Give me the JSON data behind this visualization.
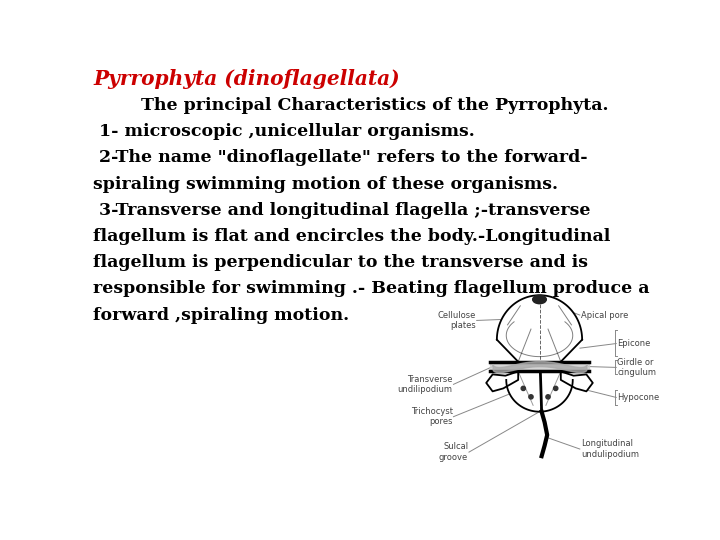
{
  "title": "Pyrrophyta (dinoflagellata)",
  "title_color": "#cc0000",
  "title_fontsize": 14.5,
  "background_color": "#ffffff",
  "text_color": "#000000",
  "body_lines": [
    {
      "text": "        The principal Characteristics of the Pyrrophyta.",
      "bold": true,
      "fontsize": 12.5
    },
    {
      "text": " 1- microscopic ,unicellular organisms.",
      "bold": true,
      "fontsize": 12.5
    },
    {
      "text": " 2-The name \"dinoflagellate\" refers to the forward-",
      "bold": true,
      "fontsize": 12.5
    },
    {
      "text": "spiraling swimming motion of these organisms.",
      "bold": true,
      "fontsize": 12.5
    },
    {
      "text": " 3-Transverse and longitudinal flagella ;-transverse",
      "bold": true,
      "fontsize": 12.5
    },
    {
      "text": "flagellum is flat and encircles the body.-Longitudinal",
      "bold": true,
      "fontsize": 12.5
    },
    {
      "text": "flagellum is perpendicular to the transverse and is",
      "bold": true,
      "fontsize": 12.5
    },
    {
      "text": "responsible for swimming .- Beating flagellum produce a",
      "bold": true,
      "fontsize": 12.5
    },
    {
      "text": "forward ,spiraling motion.",
      "bold": true,
      "fontsize": 12.5
    }
  ],
  "label_fontsize": 6.0,
  "label_color": "#444444"
}
